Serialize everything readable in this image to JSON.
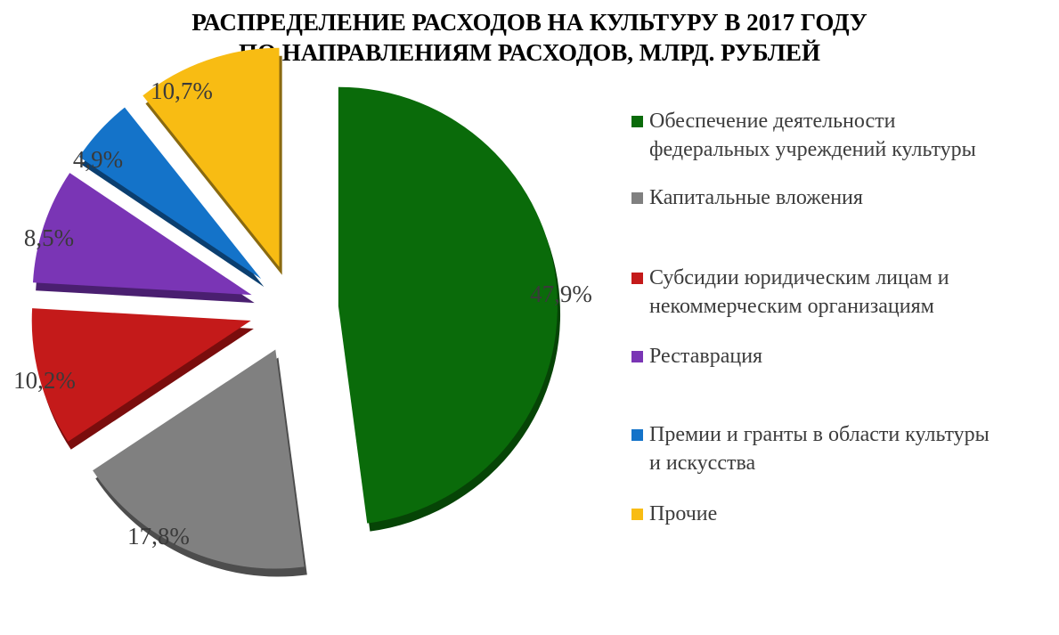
{
  "chart_data": {
    "type": "pie",
    "title_lines": [
      "РАСПРЕДЕЛЕНИЕ РАСХОДОВ НА КУЛЬТУРУ В 2017 ГОДУ",
      "ПО НАПРАВЛЕНИЯМ  РАСХОДОВ,  МЛРД. РУБЛЕЙ"
    ],
    "slices": [
      {
        "legend_lines": [
          "Обеспечение деятельности",
          "федеральных учреждений культуры"
        ],
        "value": 47.9,
        "label": "47,9%",
        "color": "#0a6b0a",
        "side_color": "#064406"
      },
      {
        "legend_lines": [
          "Капитальные вложения"
        ],
        "value": 17.8,
        "label": "17,8%",
        "color": "#808080",
        "side_color": "#4d4d4d"
      },
      {
        "legend_lines": [
          "Субсидии юридическим лицам и",
          "некоммерческим организациям"
        ],
        "value": 10.2,
        "label": "10,2%",
        "color": "#c41a1a",
        "side_color": "#7a0d0d"
      },
      {
        "legend_lines": [
          "Реставрация"
        ],
        "value": 8.5,
        "label": "8,5%",
        "color": "#7a35b5",
        "side_color": "#4a1f70"
      },
      {
        "legend_lines": [
          "Премии и гранты в области культуры",
          "и искусства"
        ],
        "value": 4.9,
        "label": "4,9%",
        "color": "#1473c9",
        "side_color": "#0b3f70"
      },
      {
        "legend_lines": [
          "Прочие"
        ],
        "value": 10.7,
        "label": "10,7%",
        "color": "#f8bc13",
        "side_color": "#8a6a10"
      }
    ],
    "legend_position": "right"
  }
}
